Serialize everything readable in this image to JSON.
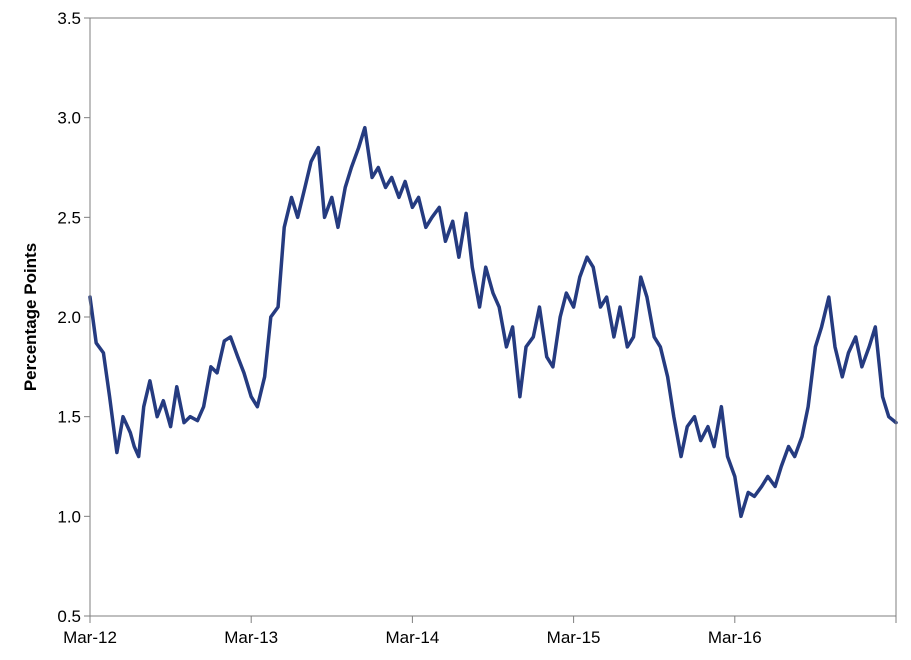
{
  "chart_data": {
    "type": "line",
    "title": "",
    "xlabel": "",
    "ylabel": "Percentage Points",
    "x_tick_labels": [
      "Mar-12",
      "Mar-13",
      "Mar-14",
      "Mar-15",
      "Mar-16"
    ],
    "y_tick_labels": [
      "0.5",
      "1.0",
      "1.5",
      "2.0",
      "2.5",
      "3.0",
      "3.5"
    ],
    "xlim": [
      "2012-03",
      "2017-03"
    ],
    "ylim": [
      0.5,
      3.5
    ],
    "grid": false,
    "legend": "none",
    "line_color": "#253b80",
    "series": [
      {
        "x": [
          "2012-03-01",
          "2012-03-15",
          "2012-04-01",
          "2012-04-15",
          "2012-05-01",
          "2012-05-15",
          "2012-06-01",
          "2012-06-10",
          "2012-06-20",
          "2012-07-01",
          "2012-07-15",
          "2012-08-01",
          "2012-08-15",
          "2012-09-01",
          "2012-09-15",
          "2012-10-01",
          "2012-10-15",
          "2012-11-01",
          "2012-11-15",
          "2012-12-01",
          "2012-12-15",
          "2013-01-01",
          "2013-01-15",
          "2013-02-01",
          "2013-02-15",
          "2013-03-01",
          "2013-03-15",
          "2013-04-01",
          "2013-04-15",
          "2013-05-01",
          "2013-05-15",
          "2013-06-01",
          "2013-06-15",
          "2013-07-01",
          "2013-07-15",
          "2013-08-01",
          "2013-08-15",
          "2013-09-01",
          "2013-09-15",
          "2013-10-01",
          "2013-10-15",
          "2013-11-01",
          "2013-11-15",
          "2013-12-01",
          "2013-12-15",
          "2014-01-01",
          "2014-01-15",
          "2014-02-01",
          "2014-02-15",
          "2014-03-01",
          "2014-03-15",
          "2014-04-01",
          "2014-04-15",
          "2014-05-01",
          "2014-05-15",
          "2014-06-01",
          "2014-06-15",
          "2014-07-01",
          "2014-07-15",
          "2014-08-01",
          "2014-08-15",
          "2014-09-01",
          "2014-09-15",
          "2014-10-01",
          "2014-10-15",
          "2014-11-01",
          "2014-11-15",
          "2014-12-01",
          "2014-12-15",
          "2015-01-01",
          "2015-01-15",
          "2015-02-01",
          "2015-02-15",
          "2015-03-01",
          "2015-03-15",
          "2015-04-01",
          "2015-04-15",
          "2015-05-01",
          "2015-05-15",
          "2015-06-01",
          "2015-06-15",
          "2015-07-01",
          "2015-07-15",
          "2015-08-01",
          "2015-08-15",
          "2015-09-01",
          "2015-09-15",
          "2015-10-01",
          "2015-10-15",
          "2015-11-01",
          "2015-11-15",
          "2015-12-01",
          "2015-12-15",
          "2016-01-01",
          "2016-01-15",
          "2016-02-01",
          "2016-02-15",
          "2016-03-01",
          "2016-03-15",
          "2016-04-01",
          "2016-04-15",
          "2016-05-01",
          "2016-05-15",
          "2016-06-01",
          "2016-06-15",
          "2016-07-01",
          "2016-07-15",
          "2016-08-01",
          "2016-08-15",
          "2016-09-01",
          "2016-09-15",
          "2016-10-01",
          "2016-10-15",
          "2016-11-01",
          "2016-11-15",
          "2016-12-01",
          "2016-12-15",
          "2017-01-01",
          "2017-01-15",
          "2017-02-01",
          "2017-02-15",
          "2017-03-01"
        ],
        "values": [
          2.1,
          1.87,
          1.82,
          1.6,
          1.32,
          1.5,
          1.42,
          1.35,
          1.3,
          1.55,
          1.68,
          1.5,
          1.58,
          1.45,
          1.65,
          1.47,
          1.5,
          1.48,
          1.55,
          1.75,
          1.72,
          1.88,
          1.9,
          1.8,
          1.72,
          1.6,
          1.55,
          1.7,
          2.0,
          2.05,
          2.45,
          2.6,
          2.5,
          2.65,
          2.78,
          2.85,
          2.5,
          2.6,
          2.45,
          2.65,
          2.75,
          2.85,
          2.95,
          2.7,
          2.75,
          2.65,
          2.7,
          2.6,
          2.68,
          2.55,
          2.6,
          2.45,
          2.5,
          2.55,
          2.38,
          2.48,
          2.3,
          2.52,
          2.25,
          2.05,
          2.25,
          2.12,
          2.05,
          1.85,
          1.95,
          1.6,
          1.85,
          1.9,
          2.05,
          1.8,
          1.75,
          2.0,
          2.12,
          2.05,
          2.2,
          2.3,
          2.25,
          2.05,
          2.1,
          1.9,
          2.05,
          1.85,
          1.9,
          2.2,
          2.1,
          1.9,
          1.85,
          1.7,
          1.5,
          1.3,
          1.45,
          1.5,
          1.38,
          1.45,
          1.35,
          1.55,
          1.3,
          1.2,
          1.0,
          1.12,
          1.1,
          1.15,
          1.2,
          1.15,
          1.25,
          1.35,
          1.3,
          1.4,
          1.55,
          1.85,
          1.95,
          2.1,
          1.85,
          1.7,
          1.82,
          1.9,
          1.75,
          1.85,
          1.95,
          1.6,
          1.5,
          1.47
        ]
      }
    ]
  }
}
